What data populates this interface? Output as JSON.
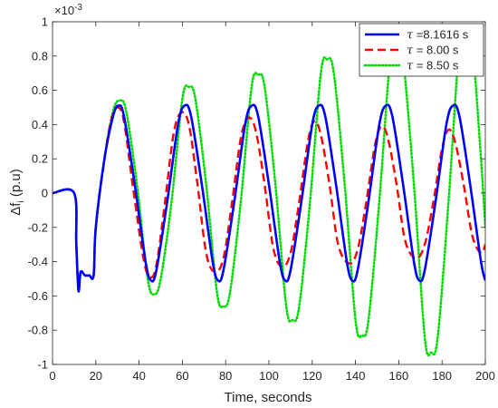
{
  "chart_data": {
    "type": "line",
    "xlabel": "Time, seconds",
    "ylabel_main": "Δf",
    "ylabel_sub": "i",
    "ylabel_unit": " (p.u)",
    "y_scale_text": "×10",
    "y_scale_exp": "-3",
    "xlim": [
      0,
      200
    ],
    "ylim": [
      -1,
      1
    ],
    "x_ticks": [
      0,
      20,
      40,
      60,
      80,
      100,
      120,
      140,
      160,
      180,
      200
    ],
    "y_ticks": [
      -1,
      -0.8,
      -0.6,
      -0.4,
      -0.2,
      0,
      0.2,
      0.4,
      0.6,
      0.8,
      1
    ],
    "y_tick_labels": [
      "-1",
      "-0.8",
      "-0.6",
      "-0.4",
      "-0.2",
      "0",
      "0.2",
      "0.4",
      "0.6",
      "0.8",
      "1"
    ],
    "grid": false,
    "legend_position": "top-right",
    "series": [
      {
        "name": "=8.1616 s",
        "legend_symbol": "τ",
        "color": "#0000ff",
        "dash": "solid",
        "x": [
          0,
          10,
          11,
          12,
          13,
          15,
          17,
          19,
          20,
          24,
          28,
          30.5,
          33,
          38,
          43,
          45.5,
          48,
          53,
          58,
          61,
          64,
          69,
          74,
          76.5,
          79,
          84,
          89,
          92,
          95,
          100,
          105,
          107.5,
          110,
          115,
          120,
          123,
          126,
          131,
          136,
          138.5,
          141,
          146,
          151,
          154,
          157,
          162,
          167,
          169.5,
          172,
          177,
          182,
          185,
          188,
          193,
          198,
          200
        ],
        "y": [
          0,
          0,
          -0.3,
          -0.57,
          -0.46,
          -0.48,
          -0.48,
          -0.48,
          -0.2,
          0.2,
          0.45,
          0.51,
          0.45,
          0.05,
          -0.4,
          -0.51,
          -0.45,
          -0.05,
          0.4,
          0.51,
          0.45,
          0.05,
          -0.4,
          -0.51,
          -0.45,
          -0.05,
          0.4,
          0.51,
          0.45,
          0.05,
          -0.4,
          -0.51,
          -0.45,
          -0.05,
          0.4,
          0.51,
          0.45,
          0.05,
          -0.4,
          -0.51,
          -0.45,
          -0.05,
          0.4,
          0.51,
          0.45,
          0.05,
          -0.4,
          -0.51,
          -0.45,
          -0.05,
          0.4,
          0.51,
          0.45,
          0.05,
          -0.4,
          -0.51
        ]
      },
      {
        "name": "= 8.00 s",
        "legend_symbol": "τ",
        "color": "#ff0000",
        "dash": "dashed",
        "x": [
          0,
          10,
          11,
          12,
          13,
          15,
          17,
          19,
          20,
          24,
          27,
          30,
          33,
          37,
          42,
          45,
          48,
          52,
          56,
          59.5,
          63,
          67,
          71,
          75,
          79,
          83,
          87,
          90.5,
          94,
          98,
          102,
          106,
          110,
          114,
          118,
          121,
          124,
          128,
          132,
          137,
          141,
          145,
          149,
          152,
          155,
          159,
          163,
          168,
          172,
          176,
          180,
          183,
          186,
          190,
          194,
          198,
          200
        ],
        "y": [
          0,
          0,
          -0.3,
          -0.57,
          -0.46,
          -0.48,
          -0.48,
          -0.48,
          -0.2,
          0.2,
          0.42,
          0.5,
          0.42,
          0.05,
          -0.38,
          -0.49,
          -0.42,
          -0.05,
          0.35,
          0.47,
          0.4,
          0.05,
          -0.35,
          -0.46,
          -0.38,
          -0.05,
          0.32,
          0.44,
          0.36,
          0.05,
          -0.32,
          -0.43,
          -0.35,
          -0.05,
          0.3,
          0.42,
          0.34,
          0.05,
          -0.3,
          -0.41,
          -0.33,
          -0.05,
          0.28,
          0.39,
          0.32,
          0.05,
          -0.28,
          -0.38,
          -0.3,
          -0.05,
          0.26,
          0.37,
          0.3,
          0.05,
          -0.25,
          -0.35,
          -0.3
        ]
      },
      {
        "name": "= 8.50 s",
        "legend_symbol": "τ",
        "color": "#00dd00",
        "dash": "dotted",
        "x": [
          0,
          10,
          11,
          12,
          13,
          15,
          17,
          19,
          20,
          24,
          28,
          31,
          34,
          39,
          44,
          47,
          50,
          55,
          60,
          63,
          66,
          71,
          76,
          79,
          82,
          87,
          92,
          95,
          98,
          103,
          108,
          111,
          114,
          119,
          124,
          127,
          130,
          135,
          140,
          143,
          146,
          151,
          156,
          159,
          162,
          167,
          172,
          175,
          178,
          183,
          188,
          191,
          194,
          198,
          200
        ],
        "y": [
          0,
          0,
          -0.3,
          -0.57,
          -0.46,
          -0.48,
          -0.48,
          -0.48,
          -0.2,
          0.2,
          0.48,
          0.54,
          0.48,
          0.05,
          -0.5,
          -0.59,
          -0.5,
          -0.05,
          0.55,
          0.62,
          0.55,
          0.05,
          -0.58,
          -0.66,
          -0.58,
          -0.05,
          0.62,
          0.69,
          0.62,
          0.05,
          -0.66,
          -0.74,
          -0.66,
          -0.05,
          0.7,
          0.78,
          0.7,
          0.05,
          -0.74,
          -0.83,
          -0.74,
          -0.05,
          0.78,
          0.87,
          0.78,
          0.05,
          -0.84,
          -0.93,
          -0.84,
          -0.05,
          0.86,
          0.95,
          0.86,
          0.2,
          -0.2
        ]
      }
    ]
  }
}
